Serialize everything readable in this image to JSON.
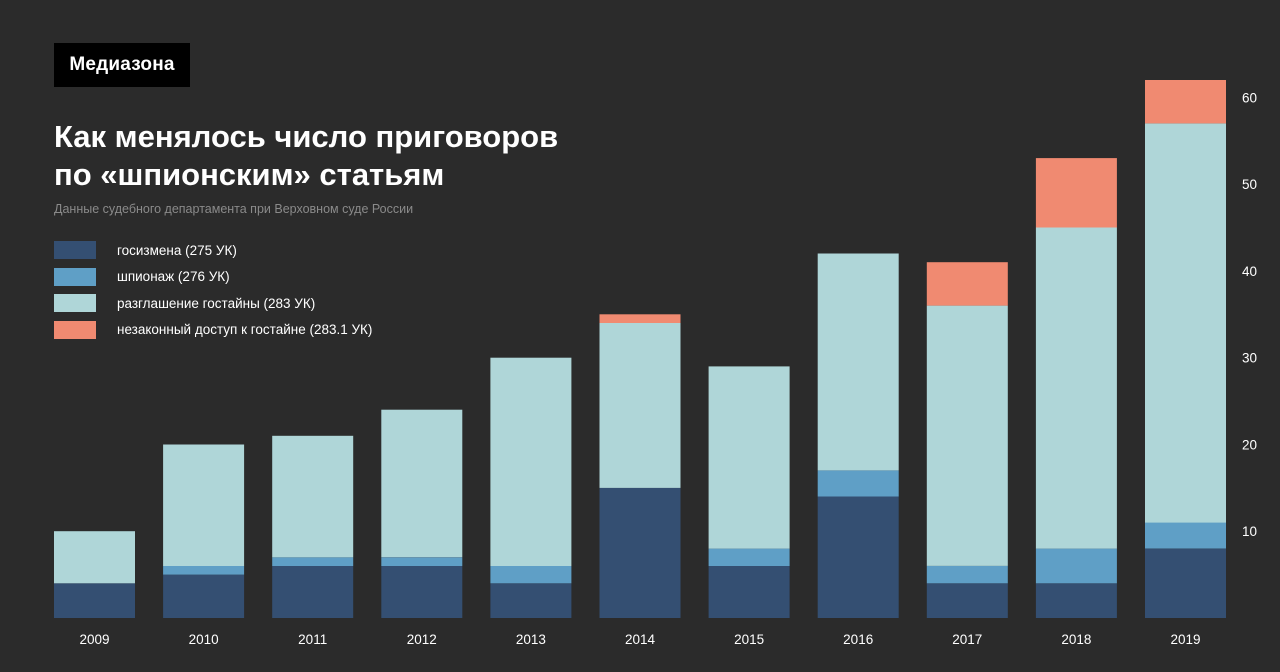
{
  "header": {
    "logo": "Медиазона",
    "title_lines": [
      "Как менялось число приговоров",
      "по «шпионским» статьям"
    ],
    "subtitle": "Данные судебного департамента при Верховном суде России"
  },
  "chart_data": {
    "type": "bar",
    "stacked": true,
    "categories": [
      "2009",
      "2010",
      "2011",
      "2012",
      "2013",
      "2014",
      "2015",
      "2016",
      "2017",
      "2018",
      "2019"
    ],
    "series": [
      {
        "name": "госизмена (275 УК)",
        "color": "#344f72",
        "values": [
          4,
          5,
          6,
          6,
          4,
          15,
          6,
          14,
          4,
          4,
          8
        ]
      },
      {
        "name": "шпионаж (276 УК)",
        "color": "#5f9fc6",
        "values": [
          0,
          1,
          1,
          1,
          2,
          0,
          2,
          3,
          2,
          4,
          3
        ]
      },
      {
        "name": "разглашение гостайны (283 УК)",
        "color": "#afd6d8",
        "values": [
          6,
          14,
          14,
          17,
          24,
          19,
          21,
          25,
          30,
          37,
          46
        ]
      },
      {
        "name": "незаконный доступ к гостайне (283.1 УК)",
        "color": "#f08a71",
        "values": [
          0,
          0,
          0,
          0,
          0,
          1,
          0,
          0,
          5,
          8,
          5
        ]
      }
    ],
    "ylim": [
      0,
      62
    ],
    "yticks": [
      10,
      20,
      30,
      40,
      50,
      60
    ],
    "y_axis_side": "right",
    "grid": false,
    "legend_position": "top-left"
  }
}
